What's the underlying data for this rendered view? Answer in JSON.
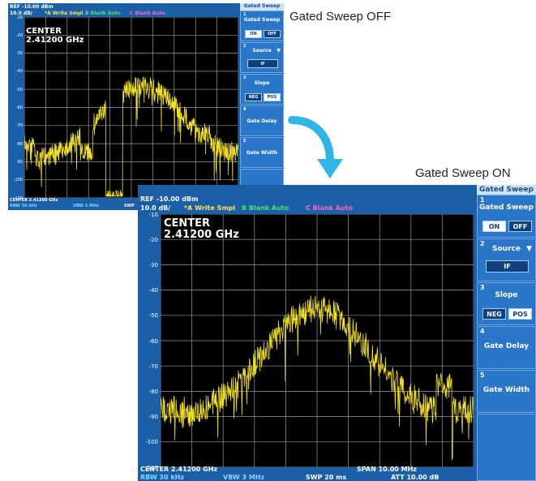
{
  "captions": {
    "off": "Gated Sweep OFF",
    "on": "Gated Sweep ON"
  },
  "screens": {
    "off": {
      "ref": "REF  -10.00 dBm",
      "scale": "10.0 dB/",
      "trace_a": "*A Write Smpl",
      "trace_b": "B Blank Auto",
      "trace_c": "C Blank Auto",
      "center_label": "CENTER",
      "center_freq": "2.41200 GHz",
      "center_footer": "CENTER 2.41200 GHz",
      "rbw": "RBW  30 kHz",
      "vbw": "VBW  3 MHz",
      "swp": "SWP",
      "yticks": [
        "-10",
        "-20",
        "-30",
        "-40",
        "-50",
        "-60",
        "-70",
        "-80",
        "-90",
        "-100",
        "-110"
      ]
    },
    "on": {
      "ref": "REF  -10.00 dBm",
      "scale": "10.0 dB/",
      "trace_a": "*A Write Smpl",
      "trace_b": "B Blank Auto",
      "trace_c": "C Blank Auto",
      "center_label": "CENTER",
      "center_freq": "2.41200 GHz",
      "center_footer": "CENTER 2.41200 GHz",
      "span": "SPAN  10.00 MHz",
      "rbw": "RBW  30 kHz",
      "vbw": "VBW  3 MHz",
      "swp": "SWP  20 ms",
      "att": "ATT  10.00 dB",
      "yticks": [
        "-10",
        "-20",
        "-30",
        "-40",
        "-50",
        "-60",
        "-70",
        "-80",
        "-90",
        "-100",
        "-110"
      ]
    }
  },
  "softkeys": {
    "menu_title": "Gated Sweep",
    "k1": {
      "num": "1",
      "label": "Gated Sweep",
      "on": "ON",
      "off": "OFF"
    },
    "k2": {
      "num": "2",
      "label": "Source",
      "value": "IF"
    },
    "k3": {
      "num": "3",
      "label": "Slope",
      "neg": "NEG",
      "pos": "POS"
    },
    "k4": {
      "num": "4",
      "label": "Gate Delay"
    },
    "k5": {
      "num": "5",
      "label": "Gate Width"
    }
  },
  "colors": {
    "screen_bg": "#1b5fa8",
    "trace": "#f2e020",
    "grid": "#9a9a9a",
    "arrow": "#2fb6e6"
  }
}
